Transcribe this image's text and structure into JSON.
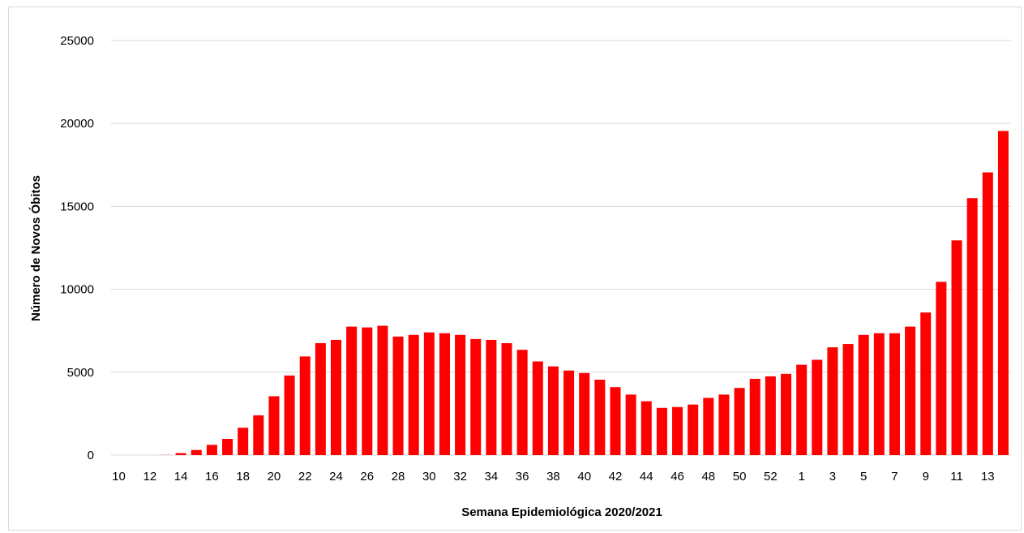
{
  "chart_data": {
    "type": "bar",
    "xlabel": "Semana Epidemiológica 2020/2021",
    "ylabel": "Número de Novos Óbitos",
    "ylim": [
      0,
      25000
    ],
    "yticks": [
      0,
      5000,
      10000,
      15000,
      20000,
      25000
    ],
    "grid": true,
    "bar_color": "#ff0000",
    "categories": [
      "10",
      "11",
      "12",
      "13",
      "14",
      "15",
      "16",
      "17",
      "18",
      "19",
      "20",
      "21",
      "22",
      "23",
      "24",
      "25",
      "26",
      "27",
      "28",
      "29",
      "30",
      "31",
      "32",
      "33",
      "34",
      "35",
      "36",
      "37",
      "38",
      "39",
      "40",
      "41",
      "42",
      "43",
      "44",
      "45",
      "46",
      "47",
      "48",
      "49",
      "50",
      "51",
      "52",
      "53",
      "1",
      "2",
      "3",
      "4",
      "5",
      "6",
      "7",
      "8",
      "9",
      "10",
      "11",
      "12",
      "13",
      "14"
    ],
    "tick_labels": [
      "10",
      "",
      "12",
      "",
      "14",
      "",
      "16",
      "",
      "18",
      "",
      "20",
      "",
      "22",
      "",
      "24",
      "",
      "26",
      "",
      "28",
      "",
      "30",
      "",
      "32",
      "",
      "34",
      "",
      "36",
      "",
      "38",
      "",
      "40",
      "",
      "42",
      "",
      "44",
      "",
      "46",
      "",
      "48",
      "",
      "50",
      "",
      "52",
      "",
      "1",
      "",
      "3",
      "",
      "5",
      "",
      "7",
      "",
      "9",
      "",
      "11",
      "",
      "13",
      ""
    ],
    "values": [
      0,
      0,
      0,
      10,
      120,
      310,
      620,
      980,
      1650,
      2400,
      3550,
      4800,
      5950,
      6750,
      6950,
      7750,
      7700,
      7800,
      7150,
      7250,
      7400,
      7350,
      7250,
      7000,
      6950,
      6750,
      6350,
      5650,
      5350,
      5100,
      4950,
      4550,
      4100,
      3650,
      3250,
      2850,
      2900,
      3050,
      3450,
      3650,
      4050,
      4600,
      4750,
      4900,
      5450,
      5750,
      6500,
      6700,
      7250,
      7350,
      7350,
      7750,
      8600,
      10450,
      12950,
      15500,
      17050,
      19550
    ]
  }
}
